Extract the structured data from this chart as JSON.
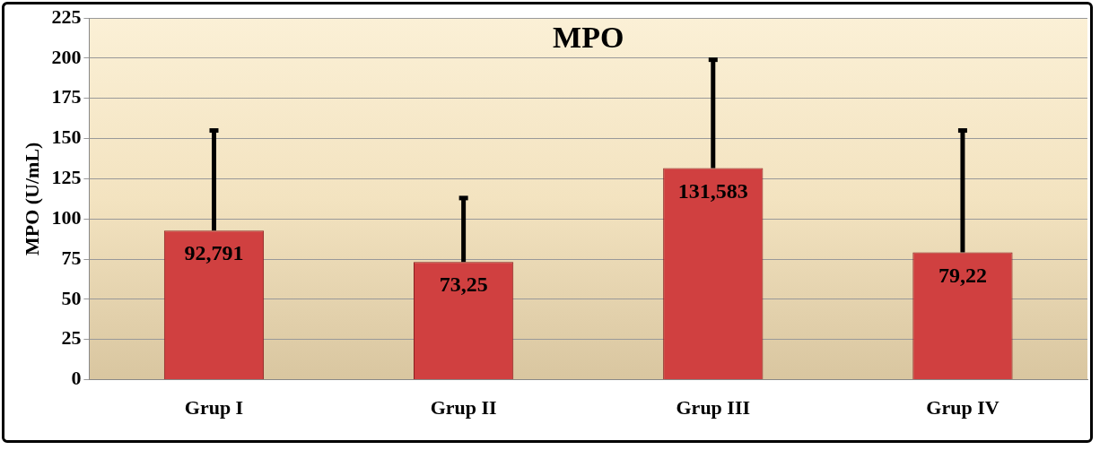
{
  "chart_data": {
    "type": "bar",
    "title": "MPO",
    "ylabel": "MPO (U/mL)",
    "categories": [
      "Grup I",
      "Grup II",
      "Grup III",
      "Grup IV"
    ],
    "series": [
      {
        "color": "#d04040",
        "values": [
          92.791,
          73.25,
          131.583,
          79.22
        ],
        "errors": [
          [
            92.791,
            155
          ],
          [
            73.25,
            113
          ],
          [
            131.583,
            199
          ],
          [
            79.22,
            155
          ]
        ]
      }
    ],
    "value_labels": [
      "92,791",
      "73,25",
      "131,583",
      "79,22"
    ],
    "ylim": [
      0,
      225
    ],
    "yticks": [
      0,
      25,
      50,
      75,
      100,
      125,
      150,
      175,
      200,
      225
    ],
    "grid": "y",
    "legend": false
  }
}
